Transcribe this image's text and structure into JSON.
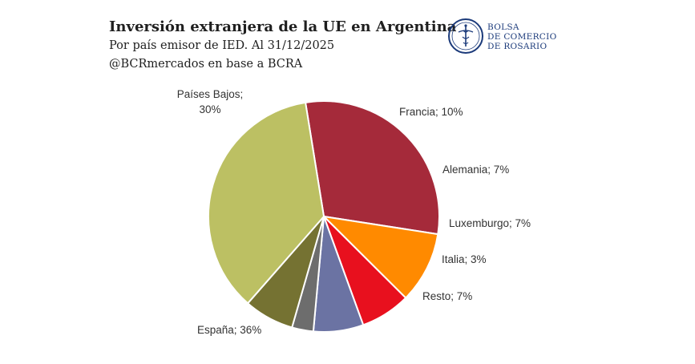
{
  "header": {
    "title": "Inversión extranjera de la UE en Argentina",
    "subtitle": "Por país emisor de IED. Al 31/12/2025",
    "source": "@BCRmercados en base a BCRA"
  },
  "logo": {
    "line1": "BOLSA",
    "line2": "DE COMERCIO",
    "line3": "DE ROSARIO",
    "icon": "bcr-emblem-icon",
    "color": "#1b3a7a"
  },
  "chart_data": {
    "type": "pie",
    "slices": [
      {
        "name": "Países Bajos",
        "value": 30,
        "color": "#a52a3a",
        "label_lines": [
          "Países Bajos;",
          "30%"
        ]
      },
      {
        "name": "Francia",
        "value": 10,
        "color": "#ff8a00",
        "label_lines": [
          "Francia; 10%"
        ]
      },
      {
        "name": "Alemania",
        "value": 7,
        "color": "#e8101e",
        "label_lines": [
          "Alemania; 7%"
        ]
      },
      {
        "name": "Luxemburgo",
        "value": 7,
        "color": "#6b73a3",
        "label_lines": [
          "Luxemburgo; 7%"
        ]
      },
      {
        "name": "Italia",
        "value": 3,
        "color": "#6d6d6d",
        "label_lines": [
          "Italia; 3%"
        ]
      },
      {
        "name": "Resto",
        "value": 7,
        "color": "#757232",
        "label_lines": [
          "Resto; 7%"
        ]
      },
      {
        "name": "España",
        "value": 36,
        "color": "#bcc063",
        "label_lines": [
          "España; 36%"
        ]
      }
    ]
  }
}
